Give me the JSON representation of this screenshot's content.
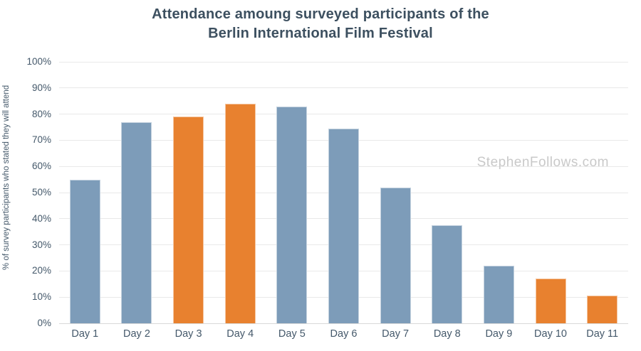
{
  "watermark": "StephenFollows.com",
  "colors": {
    "background": "#ffffff",
    "bar_default": "#7d9cb9",
    "bar_highlight": "#e8812f",
    "title_text": "#3d5060",
    "tick_text": "#44586a",
    "gridline": "#e9e9e9",
    "axis_line": "#d9d9d9",
    "watermark_text": "#c9c9c9"
  },
  "chart_data": {
    "type": "bar",
    "title": "Attendance amoung surveyed participants of the Berlin International Film Festival",
    "title_line1": "Attendance amoung surveyed participants of the",
    "title_line2": "Berlin International Film Festival",
    "xlabel": "",
    "ylabel": "% of survey participants who stated they will attend",
    "categories": [
      "Day 1",
      "Day 2",
      "Day 3",
      "Day 4",
      "Day 5",
      "Day 6",
      "Day 7",
      "Day 8",
      "Day 9",
      "Day 10",
      "Day 11"
    ],
    "values": [
      55,
      77,
      79,
      84,
      83,
      74.5,
      52,
      37.5,
      22,
      17,
      10.5
    ],
    "highlighted": [
      false,
      false,
      true,
      true,
      false,
      false,
      false,
      false,
      false,
      true,
      true
    ],
    "ylim": [
      0,
      100
    ],
    "ytick_step": 10,
    "ytick_suffix": "%",
    "grid": "horizontal",
    "legend": "none"
  }
}
